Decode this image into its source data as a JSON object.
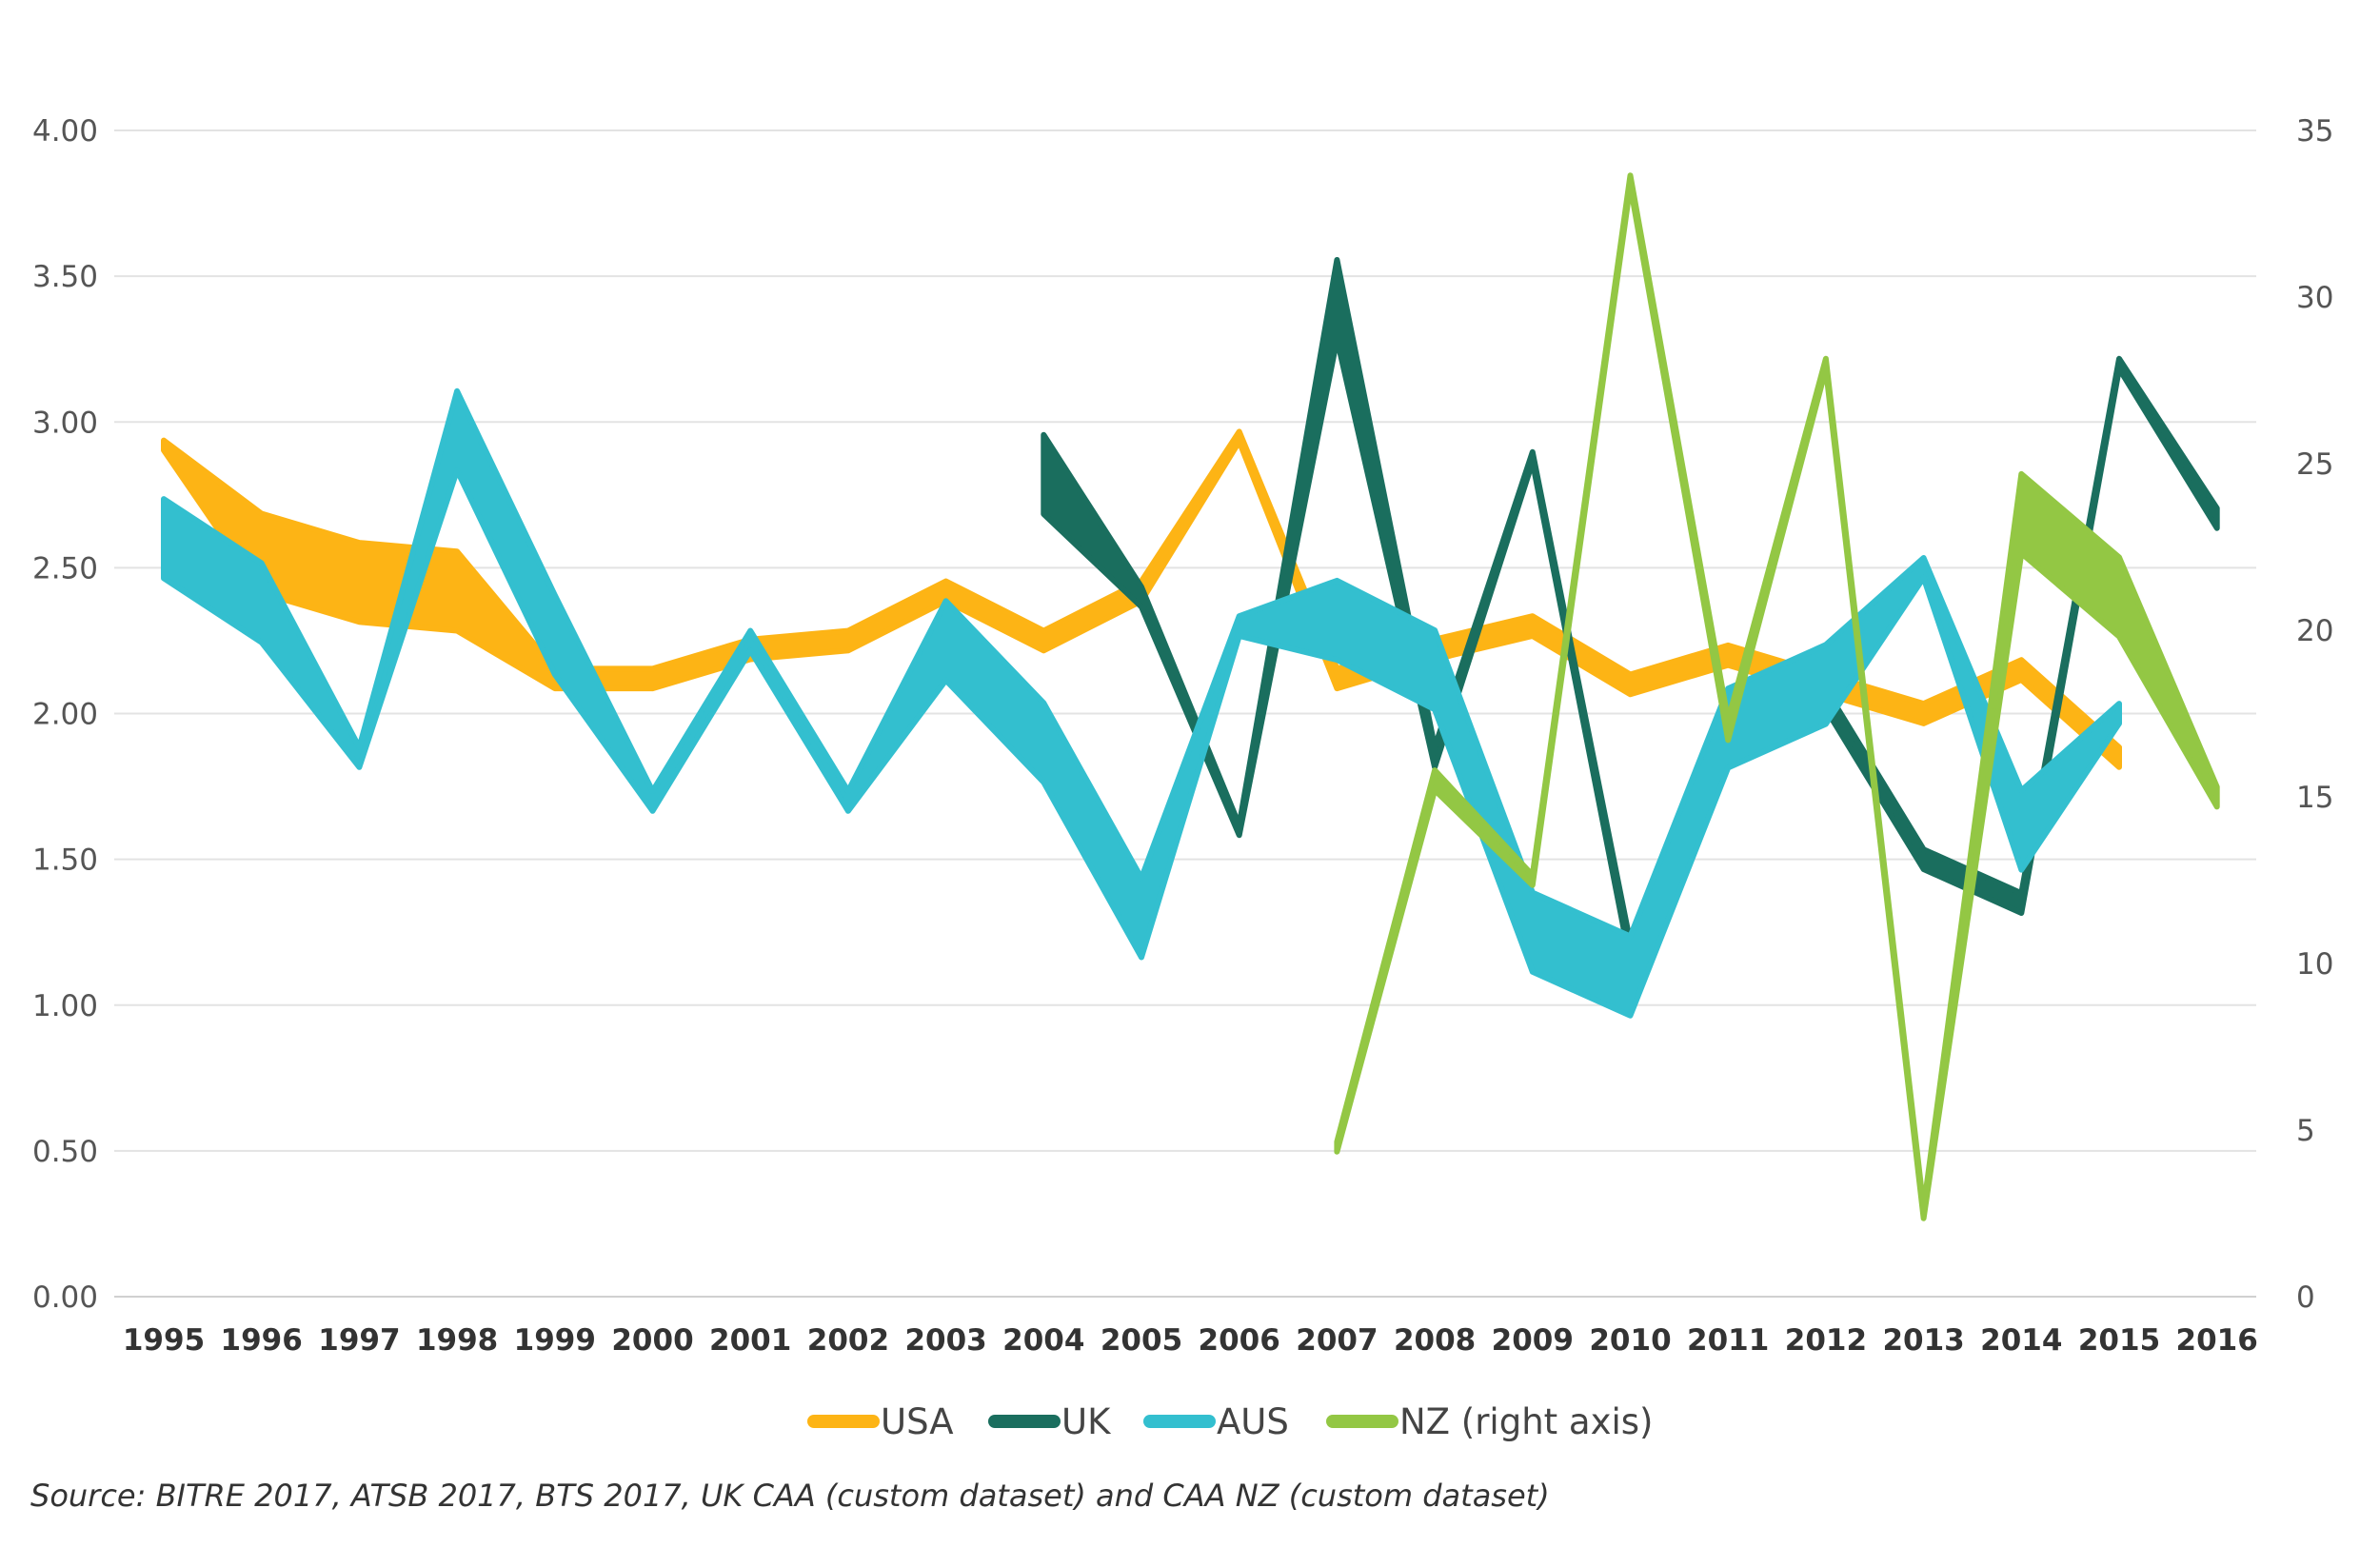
{
  "chart_data": {
    "type": "line",
    "title": "",
    "xlabel": "",
    "ylabel": "",
    "x": [
      "1995",
      "1996",
      "1997",
      "1998",
      "1999",
      "2000",
      "2001",
      "2002",
      "2003",
      "2004",
      "2005",
      "2006",
      "2007",
      "2008",
      "2009",
      "2010",
      "2011",
      "2012",
      "2013",
      "2014",
      "2015",
      "2016"
    ],
    "left_axis": {
      "ylim": [
        0,
        4
      ],
      "ticks": [
        "0.00",
        "0.50",
        "1.00",
        "1.50",
        "2.00",
        "2.50",
        "3.00",
        "3.50",
        "4.00"
      ],
      "tick_values": [
        0,
        0.5,
        1,
        1.5,
        2,
        2.5,
        3,
        3.5,
        4
      ]
    },
    "right_axis": {
      "ylim": [
        0,
        35
      ],
      "ticks": [
        "0",
        "5",
        "10",
        "15",
        "20",
        "25",
        "30",
        "35"
      ],
      "tick_values": [
        0,
        5,
        10,
        15,
        20,
        25,
        30,
        35
      ]
    },
    "series": [
      {
        "name": "USA",
        "axis": "left",
        "color": "#FDB415",
        "widths": [
          2,
          16,
          16,
          16,
          4,
          4,
          4,
          4,
          4,
          4,
          4,
          2,
          4,
          4,
          4,
          4,
          4,
          4,
          4,
          4,
          4,
          4
        ],
        "values": [
          2.92,
          2.55,
          2.45,
          2.42,
          2.12,
          2.12,
          2.22,
          2.25,
          2.42,
          2.25,
          2.42,
          2.95,
          2.12,
          2.22,
          2.3,
          2.1,
          2.2,
          2.1,
          2.0,
          2.15,
          1.85,
          null
        ]
      },
      {
        "name": "UK",
        "axis": "left",
        "color": "#1A6E5E",
        "widths": [
          0,
          0,
          0,
          0,
          0,
          0,
          0,
          0,
          0,
          16,
          4,
          2,
          16,
          4,
          2,
          4,
          4,
          4,
          4,
          4,
          2,
          4
        ],
        "values": [
          null,
          null,
          null,
          null,
          null,
          null,
          null,
          null,
          null,
          2.82,
          2.4,
          1.6,
          3.42,
          1.85,
          2.88,
          1.18,
          2.05,
          2.05,
          1.5,
          1.35,
          3.2,
          2.67
        ]
      },
      {
        "name": "AUS",
        "axis": "left",
        "color": "#33BFCF",
        "widths": [
          16,
          16,
          4,
          16,
          16,
          4,
          4,
          4,
          16,
          16,
          16,
          4,
          16,
          16,
          16,
          16,
          16,
          16,
          4,
          16,
          4,
          4
        ],
        "values": [
          2.6,
          2.38,
          1.85,
          2.97,
          2.27,
          1.7,
          2.25,
          1.7,
          2.25,
          1.9,
          1.3,
          2.3,
          2.32,
          2.15,
          1.25,
          1.1,
          1.95,
          2.1,
          2.5,
          1.6,
          2.0,
          null
        ]
      },
      {
        "name": "NZ (right axis)",
        "axis": "right",
        "color": "#93C744",
        "widths": [
          0,
          0,
          0,
          0,
          0,
          0,
          0,
          0,
          0,
          0,
          0,
          0,
          2,
          4,
          2,
          2,
          4,
          2,
          2,
          16,
          16,
          4
        ],
        "values": [
          null,
          null,
          null,
          null,
          null,
          null,
          null,
          null,
          null,
          null,
          null,
          null,
          4.5,
          15.5,
          12.5,
          33.5,
          17,
          28,
          2.5,
          23.5,
          21,
          15
        ]
      }
    ],
    "legend": {
      "placement": "bottom-center",
      "items": [
        "USA",
        "UK",
        "AUS",
        "NZ (right axis)"
      ]
    },
    "grid": true
  },
  "source_note": "Source: BITRE 2017, ATSB 2017, BTS 2017, UK CAA (custom dataset) and CAA NZ (custom dataset)"
}
